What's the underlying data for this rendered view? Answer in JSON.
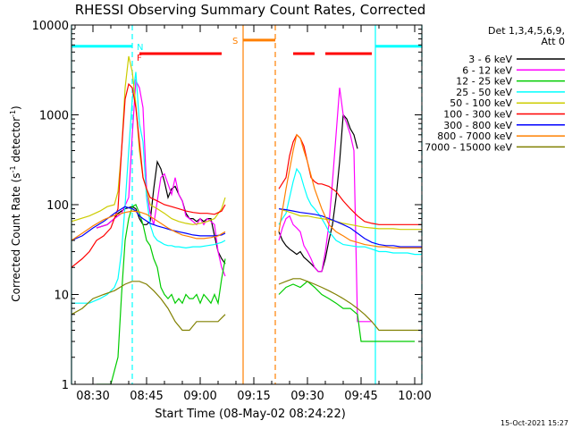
{
  "chart_data": {
    "type": "line",
    "title": "RHESSI Observing Summary Count Rates, Corrected",
    "xlabel": "Start Time (08-May-02 08:24:22)",
    "ylabel": "Corrected Count Rate (s",
    "ylabel_sup": "-1",
    "ylabel_mid": " detector",
    "ylabel_sup2": "-1",
    "ylabel_end": ")",
    "x_unit": "minutes since 08:24:22",
    "xlim": [
      0,
      98
    ],
    "ylim": [
      1,
      10000
    ],
    "y_scale": "log",
    "x_ticks": [
      {
        "x": 6,
        "label": "08:30"
      },
      {
        "x": 21,
        "label": "08:45"
      },
      {
        "x": 36,
        "label": "09:00"
      },
      {
        "x": 51,
        "label": "09:15"
      },
      {
        "x": 66,
        "label": "09:30"
      },
      {
        "x": 81,
        "label": "09:45"
      },
      {
        "x": 96,
        "label": "10:00"
      }
    ],
    "y_ticks": [
      {
        "y": 1,
        "label": "1"
      },
      {
        "y": 10,
        "label": "10"
      },
      {
        "y": 100,
        "label": "100"
      },
      {
        "y": 1000,
        "label": "1000"
      },
      {
        "y": 10000,
        "label": "10000"
      }
    ],
    "legend": {
      "position": "right",
      "header": [
        "Det 1,3,4,5,6,9,",
        "Att 0"
      ]
    },
    "series": [
      {
        "name": "3 - 6 keV",
        "color": "#000000",
        "x": [
          7,
          10,
          12,
          13,
          15,
          17,
          18,
          19,
          20,
          21,
          22,
          23,
          24,
          25,
          26,
          27,
          28,
          29,
          30,
          31,
          32,
          33,
          34,
          35,
          36,
          37,
          38,
          39,
          40,
          41,
          42,
          43,
          58,
          59,
          60,
          61,
          62,
          63,
          64,
          65,
          66,
          67,
          68,
          69,
          70,
          71,
          72,
          73,
          74,
          75,
          76,
          77,
          78,
          79,
          80
        ],
        "y": [
          55,
          60,
          70,
          80,
          90,
          95,
          90,
          70,
          60,
          60,
          65,
          150,
          300,
          250,
          180,
          120,
          150,
          160,
          130,
          110,
          80,
          70,
          70,
          65,
          70,
          65,
          70,
          70,
          45,
          30,
          25,
          22,
          50,
          40,
          35,
          32,
          30,
          28,
          30,
          26,
          24,
          22,
          20,
          18,
          18,
          25,
          40,
          60,
          120,
          300,
          1000,
          900,
          700,
          600,
          420
        ]
      },
      {
        "name": "6 - 12 keV",
        "color": "#ff00ff",
        "x": [
          7,
          10,
          12,
          14,
          16,
          17,
          18,
          19,
          20,
          21,
          22,
          23,
          24,
          25,
          26,
          27,
          28,
          29,
          30,
          31,
          32,
          33,
          34,
          35,
          36,
          37,
          38,
          39,
          40,
          41,
          42,
          43,
          58,
          59,
          60,
          61,
          62,
          63,
          64,
          65,
          66,
          67,
          68,
          69,
          70,
          71,
          72,
          73,
          74,
          75,
          76,
          77,
          78,
          79,
          80,
          81,
          82,
          84
        ],
        "y": [
          55,
          60,
          70,
          80,
          120,
          600,
          2400,
          2000,
          1200,
          150,
          80,
          60,
          110,
          200,
          220,
          170,
          130,
          200,
          130,
          110,
          75,
          70,
          65,
          60,
          70,
          60,
          70,
          65,
          60,
          30,
          20,
          16,
          40,
          55,
          70,
          75,
          60,
          55,
          50,
          35,
          30,
          25,
          20,
          18,
          18,
          30,
          60,
          180,
          600,
          2000,
          1000,
          800,
          600,
          400,
          5,
          5,
          5,
          5
        ]
      },
      {
        "name": "12 - 25 keV",
        "color": "#00cc00",
        "x": [
          7,
          9,
          11,
          13,
          14,
          15,
          16,
          17,
          18,
          19,
          20,
          21,
          22,
          23,
          24,
          25,
          26,
          27,
          28,
          29,
          30,
          31,
          32,
          33,
          34,
          35,
          36,
          37,
          38,
          39,
          40,
          41,
          42,
          43,
          58,
          60,
          62,
          64,
          66,
          68,
          70,
          72,
          74,
          76,
          78,
          80,
          81,
          82,
          84,
          86,
          88,
          90,
          92,
          94,
          96
        ],
        "y": [
          1,
          1,
          1,
          2,
          10,
          40,
          70,
          95,
          100,
          80,
          60,
          40,
          35,
          25,
          20,
          12,
          10,
          9,
          10,
          8,
          9,
          8,
          10,
          9,
          9,
          10,
          8,
          10,
          9,
          8,
          10,
          8,
          15,
          25,
          10,
          12,
          13,
          12,
          14,
          12,
          10,
          9,
          8,
          7,
          7,
          6,
          3,
          3,
          3,
          3,
          3,
          3,
          3,
          3,
          3
        ]
      },
      {
        "name": "25 - 50 keV",
        "color": "#00ffff",
        "x": [
          0,
          5,
          8,
          10,
          12,
          13,
          14,
          15,
          16,
          17,
          18,
          19,
          20,
          21,
          22,
          23,
          24,
          25,
          26,
          27,
          28,
          29,
          30,
          32,
          34,
          36,
          38,
          40,
          42,
          43,
          58,
          59,
          60,
          61,
          62,
          63,
          64,
          65,
          66,
          67,
          68,
          69,
          70,
          71,
          72,
          73,
          74,
          75,
          76,
          78,
          80,
          82,
          84,
          86,
          88,
          90,
          92,
          94,
          96,
          98
        ],
        "y": [
          8,
          8,
          9,
          10,
          12,
          15,
          30,
          100,
          400,
          1500,
          3000,
          800,
          500,
          120,
          60,
          45,
          40,
          38,
          36,
          35,
          35,
          34,
          34,
          33,
          34,
          34,
          35,
          36,
          38,
          40,
          60,
          70,
          80,
          120,
          180,
          250,
          220,
          160,
          120,
          100,
          90,
          80,
          70,
          60,
          50,
          45,
          40,
          38,
          36,
          35,
          34,
          34,
          32,
          30,
          30,
          29,
          29,
          29,
          28,
          28
        ]
      },
      {
        "name": "50 - 100 keV",
        "color": "#cccc00",
        "x": [
          0,
          5,
          8,
          10,
          12,
          13,
          14,
          15,
          16,
          17,
          18,
          19,
          20,
          21,
          22,
          24,
          26,
          28,
          30,
          32,
          34,
          36,
          38,
          40,
          42,
          43,
          58,
          60,
          62,
          64,
          66,
          68,
          70,
          72,
          74,
          76,
          78,
          80,
          82,
          84,
          86,
          88,
          90,
          92,
          94,
          96,
          98
        ],
        "y": [
          65,
          75,
          85,
          95,
          100,
          140,
          400,
          2000,
          4500,
          3000,
          1300,
          400,
          200,
          150,
          100,
          90,
          80,
          70,
          65,
          62,
          60,
          62,
          65,
          70,
          90,
          120,
          90,
          85,
          80,
          75,
          75,
          72,
          70,
          68,
          65,
          62,
          60,
          58,
          56,
          55,
          54,
          54,
          54,
          53,
          53,
          53,
          53
        ]
      },
      {
        "name": "100 - 300 keV",
        "color": "#ff0000",
        "x": [
          0,
          3,
          5,
          7,
          9,
          11,
          13,
          14,
          15,
          16,
          17,
          18,
          19,
          20,
          21,
          22,
          24,
          26,
          28,
          30,
          32,
          34,
          36,
          38,
          40,
          42,
          43,
          58,
          60,
          61,
          62,
          63,
          64,
          65,
          66,
          67,
          68,
          69,
          70,
          72,
          74,
          76,
          78,
          80,
          82,
          84,
          86,
          88,
          90,
          92,
          94,
          96,
          98
        ],
        "y": [
          20,
          25,
          30,
          40,
          45,
          55,
          90,
          400,
          1500,
          2200,
          2000,
          1200,
          500,
          200,
          150,
          120,
          110,
          100,
          95,
          90,
          85,
          82,
          80,
          80,
          78,
          85,
          100,
          150,
          200,
          350,
          500,
          600,
          550,
          450,
          300,
          200,
          180,
          170,
          170,
          160,
          140,
          110,
          90,
          75,
          65,
          62,
          60,
          60,
          60,
          60,
          60,
          60,
          60
        ]
      },
      {
        "name": "300 - 800 keV",
        "color": "#0000ff",
        "x": [
          0,
          3,
          6,
          9,
          12,
          14,
          15,
          16,
          17,
          18,
          19,
          20,
          22,
          24,
          26,
          28,
          30,
          32,
          34,
          36,
          38,
          40,
          42,
          43,
          58,
          60,
          62,
          64,
          66,
          68,
          70,
          72,
          74,
          76,
          78,
          80,
          82,
          84,
          86,
          88,
          90,
          92,
          94,
          96,
          98
        ],
        "y": [
          40,
          45,
          55,
          65,
          80,
          90,
          95,
          92,
          90,
          85,
          75,
          70,
          62,
          58,
          55,
          52,
          50,
          48,
          46,
          45,
          45,
          45,
          46,
          48,
          90,
          88,
          85,
          82,
          80,
          78,
          75,
          70,
          65,
          60,
          55,
          48,
          42,
          38,
          36,
          35,
          35,
          34,
          34,
          34,
          34
        ]
      },
      {
        "name": "800 - 7000 keV",
        "color": "#ff8000",
        "x": [
          0,
          3,
          6,
          9,
          12,
          15,
          17,
          19,
          21,
          23,
          25,
          27,
          29,
          31,
          33,
          35,
          37,
          39,
          41,
          43,
          58,
          60,
          62,
          63,
          64,
          65,
          66,
          68,
          70,
          72,
          74,
          76,
          78,
          80,
          82,
          84,
          86,
          88,
          90,
          92,
          94,
          96,
          98
        ],
        "y": [
          40,
          48,
          58,
          68,
          76,
          82,
          85,
          83,
          78,
          70,
          62,
          55,
          50,
          46,
          44,
          42,
          42,
          43,
          45,
          50,
          50,
          150,
          400,
          600,
          550,
          400,
          300,
          150,
          90,
          60,
          50,
          45,
          40,
          38,
          36,
          35,
          34,
          34,
          33,
          33,
          33,
          33,
          33
        ]
      },
      {
        "name": "7000 - 15000 keV",
        "color": "#808000",
        "x": [
          0,
          3,
          6,
          9,
          12,
          15,
          17,
          19,
          21,
          23,
          25,
          27,
          29,
          31,
          33,
          35,
          37,
          39,
          41,
          43,
          58,
          60,
          62,
          64,
          66,
          68,
          70,
          72,
          74,
          76,
          78,
          80,
          82,
          84,
          86,
          88,
          90,
          92,
          94,
          96,
          98
        ],
        "y": [
          6,
          7,
          9,
          10,
          11,
          13,
          14,
          14,
          13,
          11,
          9,
          7,
          5,
          4,
          4,
          5,
          5,
          5,
          5,
          6,
          13,
          14,
          15,
          15,
          14,
          13,
          12,
          11,
          10,
          9,
          8,
          7,
          6,
          5,
          4,
          4,
          4,
          4,
          4,
          4,
          4
        ]
      }
    ],
    "flags": [
      {
        "letter": "N",
        "color": "#00ffff",
        "y": 5800,
        "segments": [
          [
            0,
            17
          ],
          [
            85,
            98
          ]
        ]
      },
      {
        "letter": "F",
        "color": "#ff0000",
        "y": 4800,
        "segments": [
          [
            19,
            42
          ],
          [
            62,
            68
          ],
          [
            71,
            84
          ]
        ]
      },
      {
        "letter": "S",
        "color": "#ff8000",
        "y": 6800,
        "segments": [
          [
            48,
            57
          ]
        ]
      }
    ],
    "vlines": [
      {
        "x": 0,
        "color": "#00ffff",
        "style": "solid"
      },
      {
        "x": 17,
        "color": "#00ffff",
        "style": "dashed"
      },
      {
        "x": 48,
        "color": "#ff8000",
        "style": "solid"
      },
      {
        "x": 57,
        "color": "#ff8000",
        "style": "dashed"
      },
      {
        "x": 85,
        "color": "#00ffff",
        "style": "solid"
      },
      {
        "x": 98,
        "color": "#00ffff",
        "style": "dashed"
      }
    ],
    "footer_date": "15-Oct-2021 15:27"
  }
}
